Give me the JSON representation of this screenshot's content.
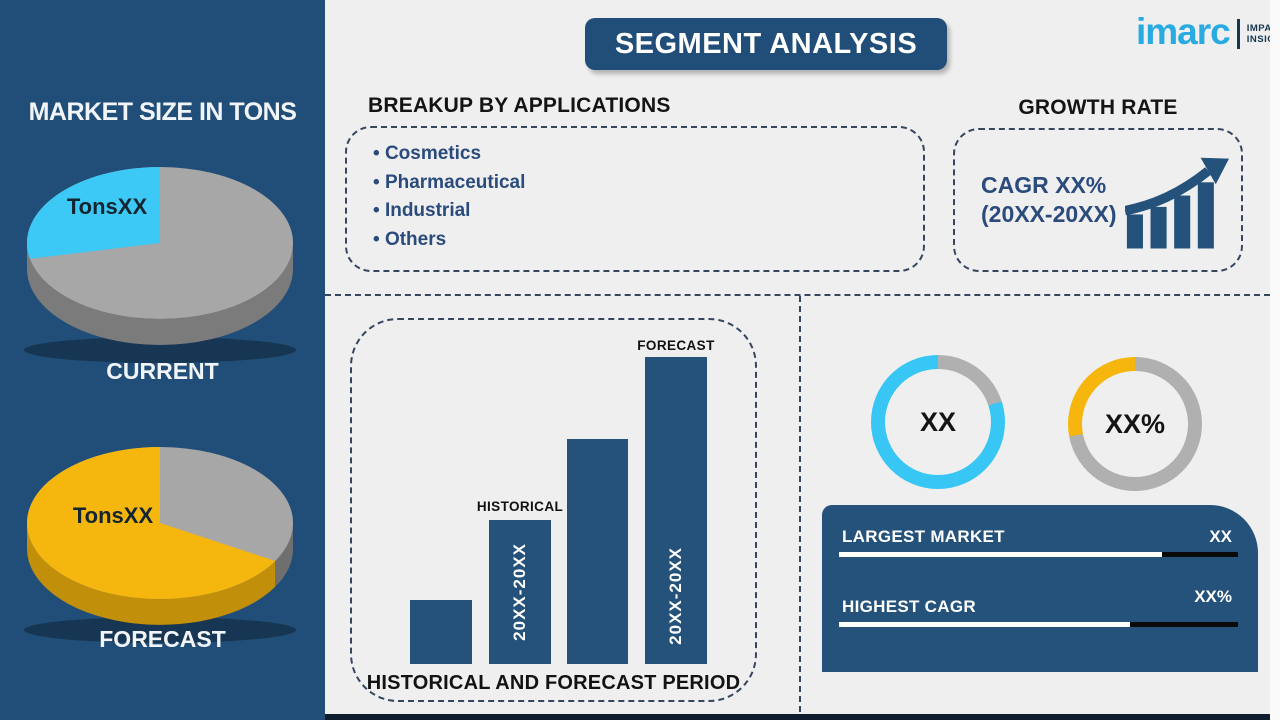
{
  "page": {
    "bg": "#EFEFF0",
    "navy": "#214E78",
    "bar_navy": "#24527A",
    "divider": "#37465F"
  },
  "header": {
    "title": "SEGMENT ANALYSIS"
  },
  "logo": {
    "brand": "imarc",
    "tagline_line1": "IMPACTFUL",
    "tagline_line2": "INSIGHTS",
    "brand_color": "#29ABE2"
  },
  "sidebar": {
    "title": "MARKET SIZE IN TONS",
    "current_pie": {
      "slice_label": "TonsXX",
      "caption": "CURRENT"
    },
    "forecast_pie": {
      "slice_label": "TonsXX",
      "caption": "FORECAST"
    }
  },
  "applications": {
    "heading": "BREAKUP BY APPLICATIONS",
    "items": [
      "Cosmetics",
      "Pharmaceutical",
      "Industrial",
      "Others"
    ]
  },
  "growth": {
    "heading": "GROWTH RATE",
    "cagr_line1": "CAGR XX%",
    "cagr_line2": "(20XX-20XX)"
  },
  "donuts": [
    {
      "label": "XX",
      "pct": 80,
      "color": "#38C6F4"
    },
    {
      "label": "XX%",
      "pct": 28,
      "color": "#F6B60D"
    }
  ],
  "summary": {
    "rows": [
      {
        "label": "LARGEST MARKET",
        "value": "XX",
        "pct": 81
      },
      {
        "label": "HIGHEST CAGR",
        "value": "XX%",
        "pct": 73
      }
    ]
  },
  "chart_data": [
    {
      "type": "pie",
      "title": "CURRENT",
      "slices": [
        {
          "label": "TonsXX",
          "pct": 28,
          "color": "#3CC9F6"
        },
        {
          "label": "",
          "pct": 72,
          "color": "#A7A7A7"
        }
      ]
    },
    {
      "type": "pie",
      "title": "FORECAST",
      "slices": [
        {
          "label": "TonsXX",
          "pct": 63,
          "color": "#F5B60E"
        },
        {
          "label": "",
          "pct": 37,
          "color": "#A7A7A7"
        }
      ]
    },
    {
      "type": "bar",
      "title": "HISTORICAL AND FORECAST PERIOD",
      "categories": [
        "",
        "HISTORICAL",
        "",
        "FORECAST"
      ],
      "values": [
        64,
        144,
        225,
        307
      ],
      "bar_labels": [
        "",
        "20XX-20XX",
        "",
        "20XX-20XX"
      ],
      "color": "#24527A"
    },
    {
      "type": "donut",
      "label": "XX",
      "pct": 80,
      "color": "#38C6F4"
    },
    {
      "type": "donut",
      "label": "XX%",
      "pct": 28,
      "color": "#F6B60D"
    }
  ]
}
